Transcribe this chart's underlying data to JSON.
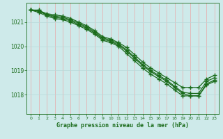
{
  "title": "Graphe pression niveau de la mer (hPa)",
  "bg_color": "#ceeaea",
  "grid_color_x": "#e8a8a8",
  "grid_color_y": "#b8d8d8",
  "line_color": "#1a6b1a",
  "ylim": [
    1017.2,
    1021.8
  ],
  "xlim": [
    -0.5,
    23.5
  ],
  "yticks": [
    1018,
    1019,
    1020,
    1021
  ],
  "xticks": [
    0,
    1,
    2,
    3,
    4,
    5,
    6,
    7,
    8,
    9,
    10,
    11,
    12,
    13,
    14,
    15,
    16,
    17,
    18,
    19,
    20,
    21,
    22,
    23
  ],
  "lines": [
    [
      1021.5,
      1021.5,
      1021.3,
      1021.2,
      1021.15,
      1021.05,
      1020.9,
      1020.75,
      1020.55,
      1020.3,
      1020.2,
      1020.05,
      1019.8,
      1019.5,
      1019.2,
      1018.95,
      1018.75,
      1018.55,
      1018.3,
      1018.05,
      1017.95,
      1017.95,
      1018.45,
      1018.6
    ],
    [
      1021.5,
      1021.4,
      1021.25,
      1021.15,
      1021.1,
      1021.0,
      1020.85,
      1020.7,
      1020.5,
      1020.25,
      1020.15,
      1020.0,
      1019.7,
      1019.4,
      1019.1,
      1018.85,
      1018.65,
      1018.45,
      1018.2,
      1017.95,
      1017.95,
      1017.95,
      1018.4,
      1018.55
    ],
    [
      1021.5,
      1021.45,
      1021.3,
      1021.25,
      1021.2,
      1021.1,
      1020.95,
      1020.8,
      1020.6,
      1020.35,
      1020.25,
      1020.1,
      1019.85,
      1019.55,
      1019.25,
      1019.0,
      1018.8,
      1018.6,
      1018.35,
      1018.1,
      1018.05,
      1018.05,
      1018.55,
      1018.7
    ],
    [
      1021.5,
      1021.48,
      1021.35,
      1021.3,
      1021.25,
      1021.15,
      1021.0,
      1020.85,
      1020.65,
      1020.4,
      1020.3,
      1020.15,
      1019.95,
      1019.65,
      1019.35,
      1019.1,
      1018.9,
      1018.7,
      1018.5,
      1018.3,
      1018.3,
      1018.3,
      1018.65,
      1018.8
    ]
  ],
  "line_styles": [
    {
      "lw": 0.9,
      "marker": "+",
      "ms": 4,
      "mew": 1.0
    },
    {
      "lw": 0.9,
      "marker": "+",
      "ms": 4,
      "mew": 1.0
    },
    {
      "lw": 0.9,
      "marker": "+",
      "ms": 4,
      "mew": 1.0
    },
    {
      "lw": 0.9,
      "marker": "+",
      "ms": 4,
      "mew": 1.0
    }
  ]
}
